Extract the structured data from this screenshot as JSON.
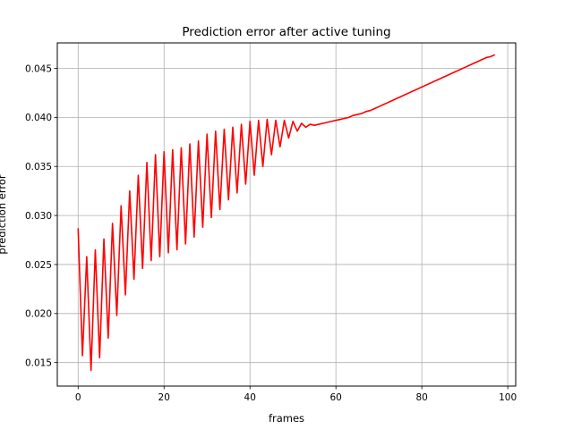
{
  "chart_data": {
    "type": "line",
    "title": "Prediction error after active tuning",
    "xlabel": "frames",
    "ylabel": "prediction error",
    "xlim": [
      -4.85,
      101.85
    ],
    "ylim": [
      0.0126,
      0.0476
    ],
    "xticks": [
      0,
      20,
      40,
      60,
      80,
      100
    ],
    "xtick_labels": [
      "0",
      "20",
      "40",
      "60",
      "80",
      "100"
    ],
    "yticks": [
      0.015,
      0.02,
      0.025,
      0.03,
      0.035,
      0.04,
      0.045
    ],
    "ytick_labels": [
      "0.015",
      "0.020",
      "0.025",
      "0.030",
      "0.035",
      "0.040",
      "0.045"
    ],
    "grid": true,
    "legend": "none",
    "series": [
      {
        "color": "#ff0000",
        "x": [
          0,
          1,
          2,
          3,
          4,
          5,
          6,
          7,
          8,
          9,
          10,
          11,
          12,
          13,
          14,
          15,
          16,
          17,
          18,
          19,
          20,
          21,
          22,
          23,
          24,
          25,
          26,
          27,
          28,
          29,
          30,
          31,
          32,
          33,
          34,
          35,
          36,
          37,
          38,
          39,
          40,
          41,
          42,
          43,
          44,
          45,
          46,
          47,
          48,
          49,
          50,
          51,
          52,
          53,
          54,
          55,
          56,
          57,
          58,
          59,
          60,
          61,
          62,
          63,
          64,
          65,
          66,
          67,
          68,
          69,
          70,
          71,
          72,
          73,
          74,
          75,
          76,
          77,
          78,
          79,
          80,
          81,
          82,
          83,
          84,
          85,
          86,
          87,
          88,
          89,
          90,
          91,
          92,
          93,
          94,
          95,
          96,
          97
        ],
        "y": [
          0.0287,
          0.0157,
          0.0258,
          0.0142,
          0.0265,
          0.0155,
          0.0276,
          0.0175,
          0.0292,
          0.0198,
          0.031,
          0.0219,
          0.0325,
          0.0235,
          0.0341,
          0.0246,
          0.0354,
          0.0254,
          0.0362,
          0.0258,
          0.0365,
          0.0262,
          0.0367,
          0.0265,
          0.0369,
          0.0271,
          0.0373,
          0.0278,
          0.0376,
          0.0288,
          0.0383,
          0.0298,
          0.0386,
          0.0306,
          0.0388,
          0.0316,
          0.039,
          0.0323,
          0.0393,
          0.0332,
          0.0396,
          0.0341,
          0.0397,
          0.035,
          0.0398,
          0.0362,
          0.0397,
          0.037,
          0.0397,
          0.0379,
          0.0396,
          0.0386,
          0.0394,
          0.039,
          0.0393,
          0.0392,
          0.0393,
          0.0394,
          0.0395,
          0.0396,
          0.0397,
          0.0398,
          0.0399,
          0.04,
          0.0402,
          0.0403,
          0.0404,
          0.0406,
          0.0407,
          0.0409,
          0.0411,
          0.0413,
          0.0415,
          0.0417,
          0.0419,
          0.0421,
          0.0423,
          0.0425,
          0.0427,
          0.0429,
          0.0431,
          0.0433,
          0.0435,
          0.0437,
          0.0439,
          0.0441,
          0.0443,
          0.0445,
          0.0447,
          0.0449,
          0.0451,
          0.0453,
          0.0455,
          0.0457,
          0.0459,
          0.0461,
          0.0462,
          0.0464
        ]
      }
    ]
  }
}
